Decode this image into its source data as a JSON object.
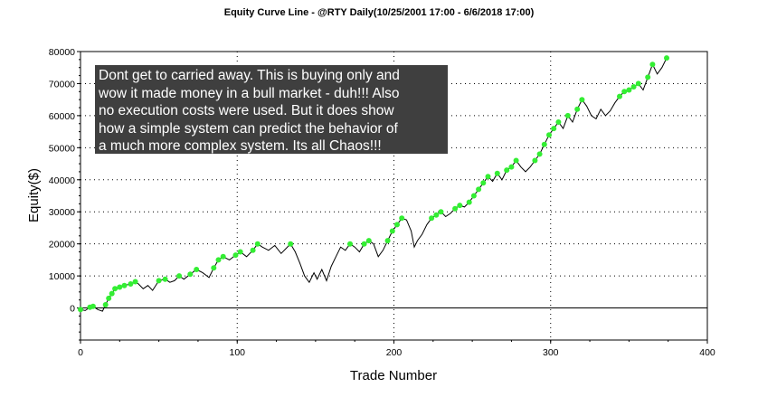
{
  "colors": {
    "line": "#000000",
    "marker": "#33ee33",
    "grid": "#000000",
    "annotation_bg": "#3f3f3f"
  },
  "annotation": {
    "lines": [
      "Dont get to carried away.  This is buying only and",
      "wow it made money in a bull market - duh!!!  Also",
      "no execution costs were used.  But it does show",
      "how a simple system can predict the behavior of",
      "a much more complex system.  Its all Chaos!!!"
    ]
  },
  "chart_data": {
    "type": "line",
    "title": "Equity Curve Line - @RTY Daily(10/25/2001 17:00 - 6/6/2018 17:00)",
    "xlabel": "Trade Number",
    "ylabel": "Equity($)",
    "xlim": [
      0,
      400
    ],
    "ylim": [
      -10000,
      80000
    ],
    "x_ticks": [
      0,
      100,
      200,
      300,
      400
    ],
    "y_ticks": [
      0,
      10000,
      20000,
      30000,
      40000,
      50000,
      60000,
      70000,
      80000
    ],
    "y_tick_labels": [
      "0",
      "10000",
      "20000",
      "30000",
      "40000",
      "50000",
      "60000",
      "70000",
      "80000"
    ],
    "grid": "dotted",
    "series": [
      {
        "x": [
          0,
          3,
          6,
          8,
          11,
          14,
          16,
          18,
          20,
          22,
          25,
          28,
          32,
          35,
          37,
          40,
          43,
          46,
          50,
          54,
          57,
          60,
          63,
          66,
          70,
          74,
          78,
          82,
          85,
          88,
          91,
          95,
          99,
          102,
          106,
          110,
          113,
          116,
          120,
          124,
          128,
          131,
          134,
          137,
          140,
          143,
          146,
          149,
          151,
          154,
          157,
          160,
          163,
          166,
          169,
          172,
          175,
          178,
          181,
          184,
          187,
          190,
          193,
          196,
          199,
          202,
          205,
          208,
          211,
          213,
          215,
          218,
          221,
          224,
          227,
          230,
          233,
          236,
          239,
          242,
          245,
          248,
          251,
          254,
          257,
          260,
          263,
          266,
          269,
          272,
          275,
          278,
          281,
          284,
          287,
          290,
          293,
          296,
          299,
          302,
          305,
          308,
          311,
          314,
          317,
          320,
          323,
          326,
          329,
          332,
          335,
          338,
          341,
          344,
          347,
          350,
          353,
          356,
          359,
          362,
          365,
          368,
          371,
          374
        ],
        "y": [
          -500,
          -800,
          200,
          500,
          -500,
          -1000,
          1000,
          3000,
          4500,
          6000,
          6500,
          7000,
          7500,
          8200,
          7500,
          6000,
          7000,
          5500,
          8500,
          9000,
          8000,
          8500,
          10000,
          9000,
          10500,
          12000,
          11000,
          9500,
          12500,
          15000,
          16000,
          15000,
          16500,
          17500,
          16000,
          18000,
          20000,
          19000,
          18000,
          19500,
          17000,
          18500,
          20000,
          17500,
          14000,
          10000,
          8000,
          11000,
          9000,
          12000,
          8500,
          13000,
          16000,
          19000,
          18000,
          20000,
          19000,
          17500,
          20000,
          21000,
          20000,
          16000,
          18000,
          21000,
          24000,
          26000,
          28000,
          27500,
          24000,
          19000,
          21000,
          23000,
          26000,
          28000,
          29000,
          30000,
          28500,
          29500,
          31000,
          32000,
          31500,
          33000,
          35000,
          37000,
          39000,
          41000,
          39500,
          42000,
          40000,
          43000,
          44000,
          46000,
          44000,
          42500,
          44000,
          46000,
          48000,
          51000,
          54000,
          56000,
          58000,
          56000,
          60000,
          58000,
          62000,
          65000,
          63000,
          60000,
          59000,
          62000,
          60000,
          61500,
          64000,
          66000,
          67500,
          68000,
          69000,
          70000,
          68000,
          72000,
          76000,
          73000,
          75000,
          78000
        ]
      }
    ]
  }
}
